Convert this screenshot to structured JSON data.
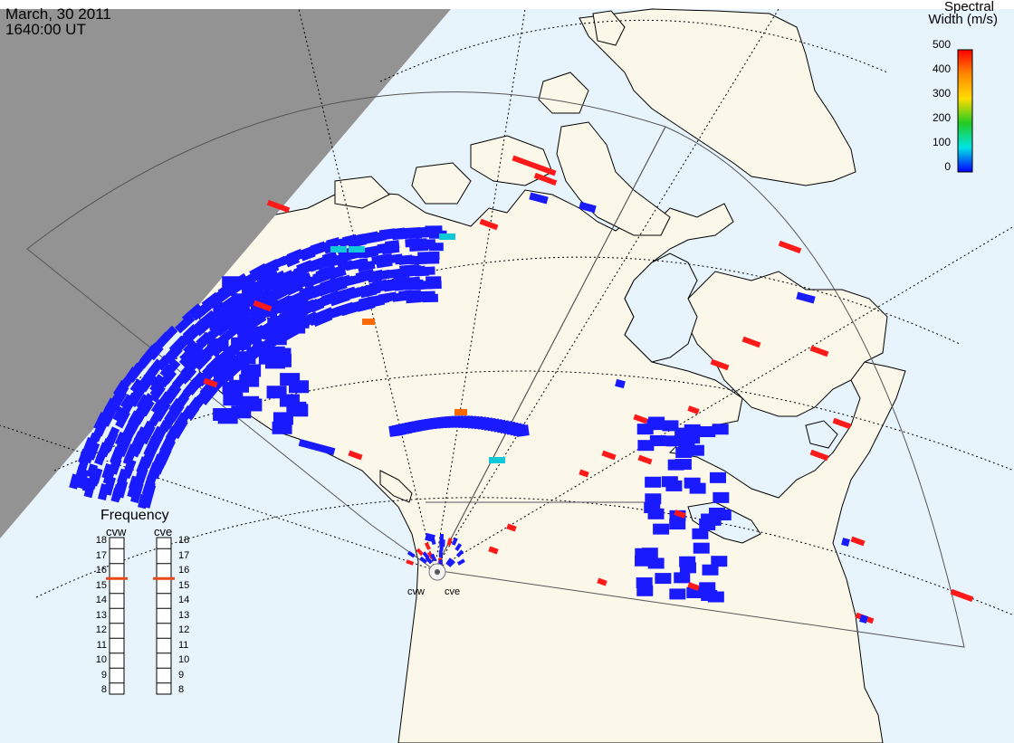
{
  "header": {
    "date": "March, 30 2011",
    "time": "1640:00 UT"
  },
  "colorbar": {
    "title_line1": "Spectral",
    "title_line2": "Width (m/s)",
    "ticks": [
      "500",
      "400",
      "300",
      "200",
      "100",
      "0"
    ],
    "min": 0,
    "max": 500,
    "colors": [
      "#ff0000",
      "#ff8800",
      "#ffdd00",
      "#22cc22",
      "#00e5e5",
      "#0000ff"
    ]
  },
  "frequency_panel": {
    "title": "Frequency",
    "radars": [
      {
        "code": "cvw",
        "freq_mhz": 15.5
      },
      {
        "code": "cve",
        "freq_mhz": 15.5
      }
    ],
    "scale": [
      "18",
      "17",
      "16",
      "15",
      "14",
      "13",
      "12",
      "11",
      "10",
      "9",
      "8"
    ],
    "scale_min": 8,
    "scale_max": 18,
    "marker_color": "#e84a1a"
  },
  "stations": [
    {
      "code": "cvw"
    },
    {
      "code": "cve"
    }
  ],
  "colors": {
    "ocean": "#e8f4fc",
    "land": "#fbf8ea",
    "night": "#939393",
    "echo_low": "#1a1aff",
    "echo_high": "#ff1a1a"
  }
}
